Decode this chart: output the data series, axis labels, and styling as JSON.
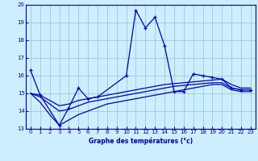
{
  "xlabel": "Graphe des températures (°c)",
  "bg_color": "#cceeff",
  "line_color": "#0000bb",
  "grid_color": "#99cccc",
  "axis_color": "#0000aa",
  "ylim": [
    13,
    20
  ],
  "xlim": [
    -0.5,
    23.5
  ],
  "yticks": [
    13,
    14,
    15,
    16,
    17,
    18,
    19,
    20
  ],
  "xticks": [
    0,
    1,
    2,
    3,
    4,
    5,
    6,
    7,
    8,
    9,
    10,
    11,
    12,
    13,
    14,
    15,
    16,
    17,
    18,
    19,
    20,
    21,
    22,
    23
  ],
  "s1_x": [
    0,
    1,
    3,
    4,
    5,
    6,
    7,
    10,
    11,
    12,
    13,
    14,
    15,
    16,
    17,
    18,
    19,
    20,
    21,
    22,
    23
  ],
  "s1_y": [
    16.3,
    14.9,
    13.2,
    14.2,
    15.3,
    14.7,
    14.8,
    16.0,
    19.7,
    18.7,
    19.3,
    17.7,
    15.1,
    15.1,
    16.1,
    16.0,
    15.9,
    15.8,
    15.3,
    15.2,
    15.2
  ],
  "s2_x": [
    0,
    1,
    2,
    3,
    4,
    5,
    6,
    7,
    8,
    9,
    10,
    11,
    12,
    13,
    14,
    15,
    16,
    17,
    18,
    19,
    20,
    21,
    22,
    23
  ],
  "s2_y": [
    15.0,
    14.9,
    14.6,
    14.3,
    14.4,
    14.6,
    14.7,
    14.8,
    14.9,
    15.0,
    15.1,
    15.2,
    15.3,
    15.4,
    15.5,
    15.55,
    15.6,
    15.65,
    15.7,
    15.75,
    15.8,
    15.5,
    15.3,
    15.3
  ],
  "s3_x": [
    0,
    1,
    2,
    3,
    4,
    5,
    6,
    7,
    8,
    9,
    10,
    11,
    12,
    13,
    14,
    15,
    16,
    17,
    18,
    19,
    20,
    21,
    22,
    23
  ],
  "s3_y": [
    15.0,
    14.8,
    14.4,
    14.0,
    14.1,
    14.3,
    14.5,
    14.6,
    14.7,
    14.8,
    14.9,
    15.0,
    15.1,
    15.2,
    15.3,
    15.4,
    15.45,
    15.5,
    15.55,
    15.6,
    15.6,
    15.3,
    15.2,
    15.2
  ],
  "s4_x": [
    0,
    1,
    2,
    3,
    4,
    5,
    6,
    7,
    8,
    9,
    10,
    11,
    12,
    13,
    14,
    15,
    16,
    17,
    18,
    19,
    20,
    21,
    22,
    23
  ],
  "s4_y": [
    15.0,
    14.5,
    13.8,
    13.2,
    13.5,
    13.8,
    14.0,
    14.2,
    14.4,
    14.5,
    14.6,
    14.7,
    14.8,
    14.9,
    15.0,
    15.1,
    15.2,
    15.3,
    15.4,
    15.5,
    15.5,
    15.2,
    15.1,
    15.1
  ]
}
